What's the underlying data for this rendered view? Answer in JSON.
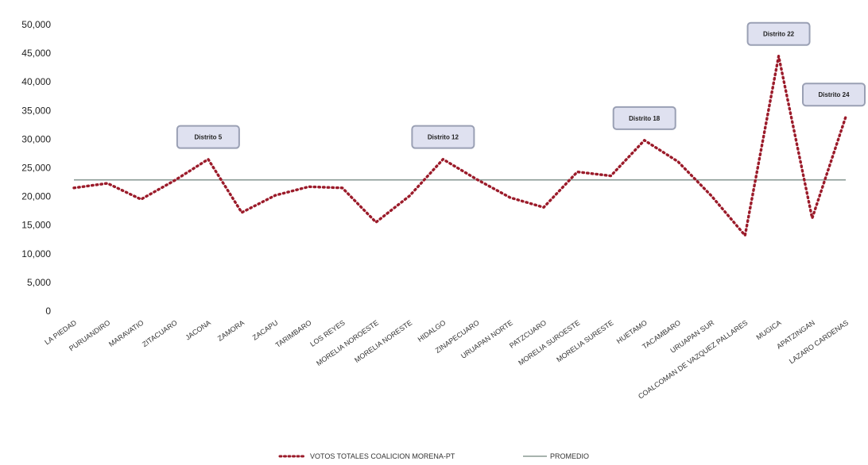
{
  "chart_data": {
    "type": "line",
    "categories": [
      "LA PIEDAD",
      "PURUANDIRO",
      "MARAVATIO",
      "ZITACUARO",
      "JACONA",
      "ZAMORA",
      "ZACAPU",
      "TARIMBARO",
      "LOS REYES",
      "MORELIA NOROESTE",
      "MORELIA NORESTE",
      "HIDALGO",
      "ZINAPECUARO",
      "URUAPAN NORTE",
      "PATZCUARO",
      "MORELIA SUROESTE",
      "MORELIA SURESTE",
      "HUETAMO",
      "TACAMBARO",
      "URUAPAN SUR",
      "COALCOMAN DE VAZQUEZ PALLARES",
      "MUGICA",
      "APATZINGAN",
      "LAZARO CARDENAS"
    ],
    "series": [
      {
        "name": "VOTOS TOTALES COALICION MORENA-PT",
        "color": "#9b1b2a",
        "style": "dotted",
        "values": [
          21500,
          22300,
          19500,
          22800,
          26500,
          17200,
          20200,
          21700,
          21500,
          15500,
          20100,
          26500,
          23000,
          19800,
          18100,
          24300,
          23600,
          29800,
          26100,
          20100,
          13200,
          44500,
          16200,
          33900
        ]
      },
      {
        "name": "PROMEDIO",
        "color": "#8a9a94",
        "style": "solid",
        "values": [
          22900,
          22900,
          22900,
          22900,
          22900,
          22900,
          22900,
          22900,
          22900,
          22900,
          22900,
          22900,
          22900,
          22900,
          22900,
          22900,
          22900,
          22900,
          22900,
          22900,
          22900,
          22900,
          22900,
          22900
        ]
      }
    ],
    "yticks": [
      0,
      5000,
      10000,
      15000,
      20000,
      25000,
      30000,
      35000,
      40000,
      45000,
      50000
    ],
    "ytick_labels": [
      "0",
      "5,000",
      "10,000",
      "15,000",
      "20,000",
      "25,000",
      "30,000",
      "35,000",
      "40,000",
      "45,000",
      "50,000"
    ],
    "ylim": [
      0,
      52000
    ],
    "annotations": [
      {
        "text": "Distrito 5",
        "index": 4
      },
      {
        "text": "Distrito 12",
        "index": 11
      },
      {
        "text": "Distrito 18",
        "index": 17
      },
      {
        "text": "Distrito 22",
        "index": 21
      },
      {
        "text": "Distrito 24",
        "index": 23
      }
    ],
    "legend": {
      "position": "bottom",
      "items": [
        "VOTOS TOTALES COALICION MORENA-PT",
        "PROMEDIO"
      ]
    },
    "grid": false,
    "title": "",
    "xlabel": "",
    "ylabel": ""
  }
}
